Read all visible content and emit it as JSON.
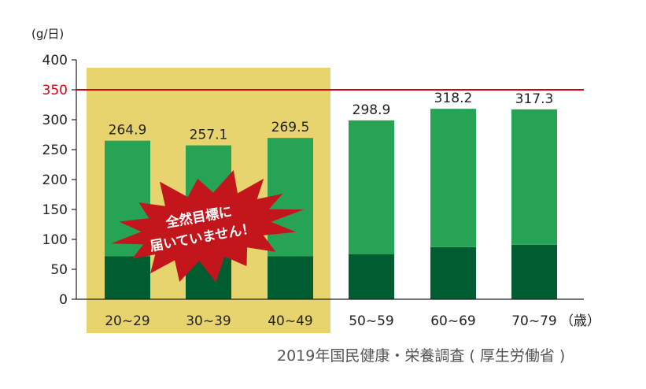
{
  "chart_data": {
    "type": "bar",
    "stacked": true,
    "categories": [
      "20~29",
      "30~39",
      "40~49",
      "50~59",
      "60~69",
      "70~79"
    ],
    "totals": [
      264.9,
      257.1,
      269.5,
      298.9,
      318.2,
      317.3
    ],
    "total_labels": [
      "264.9",
      "257.1",
      "269.5",
      "298.9",
      "318.2",
      "317.3"
    ],
    "series": [
      {
        "values": [
          72,
          72,
          72,
          75,
          87,
          91
        ],
        "color": "#005d32"
      },
      {
        "values": [
          192.9,
          185.1,
          197.5,
          223.9,
          231.2,
          226.3
        ],
        "color": "#27a356"
      }
    ],
    "ylim": [
      0,
      400
    ],
    "yticks": [
      "0",
      "50",
      "100",
      "150",
      "200",
      "250",
      "300",
      "350",
      "400"
    ],
    "ylabel": "(g/日)",
    "xlabel": "（歳）",
    "target_line": {
      "value": 350,
      "label": "350",
      "color": "#d7000f"
    },
    "highlight_categories": [
      "20~29",
      "30~39",
      "40~49"
    ],
    "highlight_color": "#e7d46f",
    "callout": {
      "lines": [
        "全然目標に",
        "届いていません！"
      ],
      "color": "#c3161c"
    },
    "grid": false
  },
  "source": "2019年国民健康・栄養調査 ( 厚生労働省 )"
}
